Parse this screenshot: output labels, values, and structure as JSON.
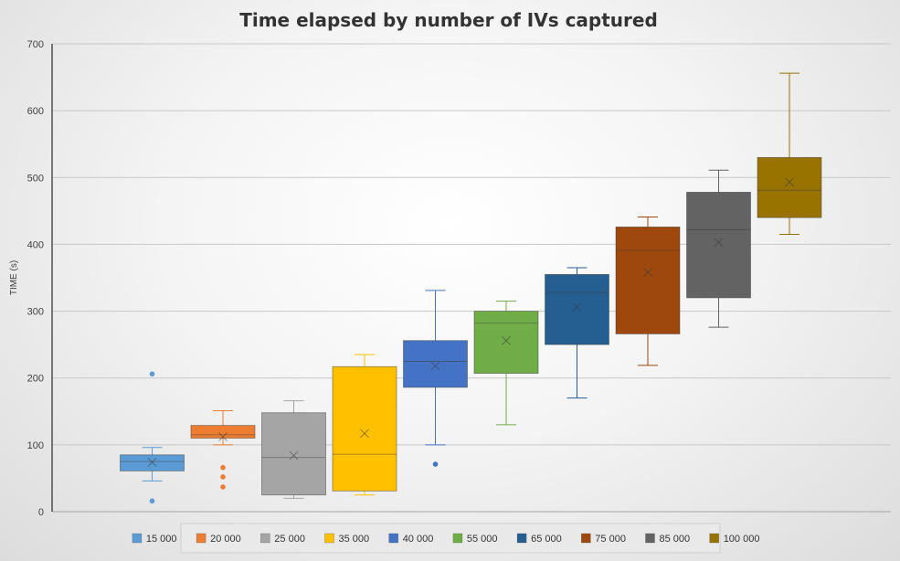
{
  "chart_data": {
    "type": "box",
    "title": "Time elapsed by number of IVs captured",
    "ylabel": "TIME (s)",
    "xlabel": "",
    "ylim": [
      0,
      700
    ],
    "yticks": [
      0,
      100,
      200,
      300,
      400,
      500,
      600,
      700
    ],
    "grid": true,
    "legend_position": "bottom",
    "series": [
      {
        "name": "15 000",
        "color": "#5B9BD5",
        "min": 46,
        "q1": 61,
        "median": 75,
        "q3": 85,
        "max": 96,
        "mean": 74,
        "outliers": [
          206,
          16
        ]
      },
      {
        "name": "20 000",
        "color": "#ED7D31",
        "min": 100,
        "q1": 110,
        "median": 115,
        "q3": 129,
        "max": 151,
        "mean": 112,
        "outliers": [
          66,
          52,
          37
        ]
      },
      {
        "name": "25 000",
        "color": "#A5A5A5",
        "min": 20,
        "q1": 25,
        "median": 81,
        "q3": 148,
        "max": 166,
        "mean": 84,
        "outliers": []
      },
      {
        "name": "35 000",
        "color": "#FFC000",
        "min": 25,
        "q1": 31,
        "median": 86,
        "q3": 217,
        "max": 235,
        "mean": 117,
        "outliers": []
      },
      {
        "name": "40 000",
        "color": "#4472C4",
        "min": 100,
        "q1": 186,
        "median": 225,
        "q3": 256,
        "max": 331,
        "mean": 218,
        "outliers": [
          71
        ]
      },
      {
        "name": "55 000",
        "color": "#70AD47",
        "min": 130,
        "q1": 207,
        "median": 282,
        "q3": 300,
        "max": 315,
        "mean": 256,
        "outliers": []
      },
      {
        "name": "65 000",
        "color": "#255E91",
        "min": 170,
        "q1": 250,
        "median": 328,
        "q3": 355,
        "max": 365,
        "mean": 306,
        "outliers": []
      },
      {
        "name": "75 000",
        "color": "#9E480E",
        "min": 219,
        "q1": 266,
        "median": 391,
        "q3": 426,
        "max": 441,
        "mean": 358,
        "outliers": []
      },
      {
        "name": "85 000",
        "color": "#636363",
        "min": 276,
        "q1": 320,
        "median": 422,
        "q3": 478,
        "max": 511,
        "mean": 403,
        "outliers": []
      },
      {
        "name": "100 000",
        "color": "#997300",
        "min": 415,
        "q1": 440,
        "median": 481,
        "q3": 530,
        "max": 656,
        "mean": 493,
        "outliers": []
      }
    ]
  }
}
